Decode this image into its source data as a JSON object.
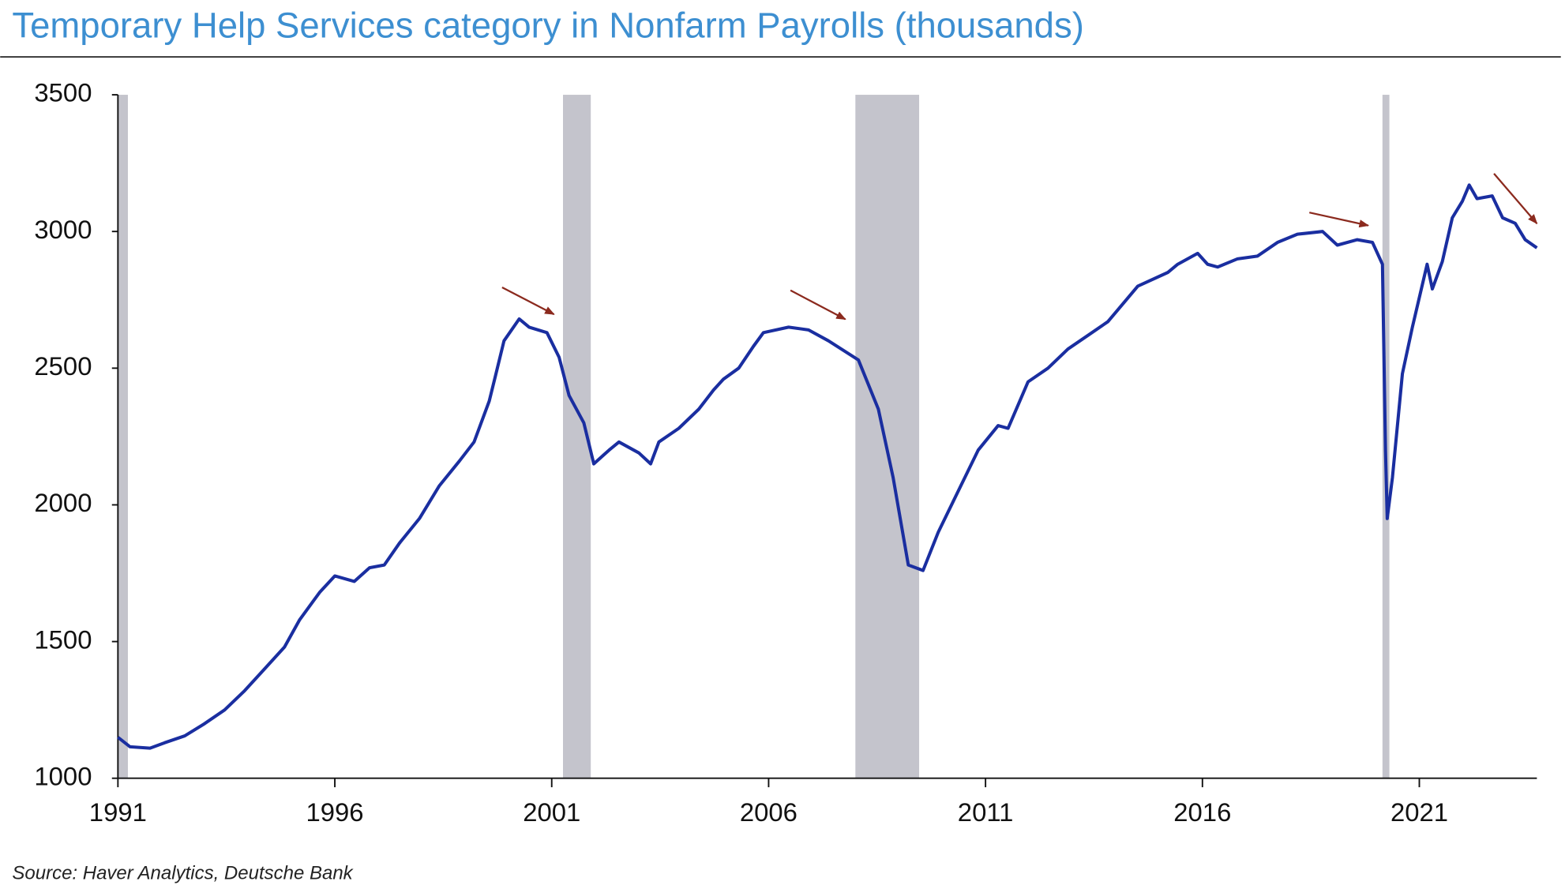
{
  "chart_data": {
    "type": "line",
    "title": "Temporary Help Services category in Nonfarm Payrolls (thousands)",
    "source": "Source: Haver Analytics, Deutsche Bank",
    "color": "#1a2ea0",
    "recession_color": "#c4c4cc",
    "x": [
      1991.0,
      1991.28,
      1991.74,
      1992.08,
      1992.54,
      1993.0,
      1993.46,
      1993.92,
      1994.38,
      1994.84,
      1995.19,
      1995.65,
      1996.0,
      1996.45,
      1996.8,
      1997.14,
      1997.49,
      1997.95,
      1998.41,
      1998.87,
      1999.21,
      1999.56,
      1999.7,
      1999.9,
      2000.25,
      2000.48,
      2000.89,
      2001.17,
      2001.4,
      2001.74,
      2001.97,
      2002.32,
      2002.55,
      2003.01,
      2003.28,
      2003.47,
      2003.93,
      2004.39,
      2004.73,
      2004.96,
      2005.31,
      2005.65,
      2005.88,
      2006.46,
      2006.92,
      2007.38,
      2008.07,
      2008.53,
      2008.87,
      2009.22,
      2009.56,
      2009.91,
      2010.37,
      2010.83,
      2011.29,
      2011.52,
      2011.98,
      2012.44,
      2012.9,
      2013.36,
      2013.82,
      2014.51,
      2015.2,
      2015.43,
      2015.89,
      2016.12,
      2016.35,
      2016.81,
      2017.27,
      2017.73,
      2018.19,
      2018.77,
      2019.11,
      2019.57,
      2019.92,
      2020.15,
      2020.22,
      2020.26,
      2020.38,
      2020.61,
      2020.84,
      2021.18,
      2021.3,
      2021.53,
      2021.76,
      2021.99,
      2022.15,
      2022.33,
      2022.68,
      2022.92,
      2023.21,
      2023.44,
      2023.71
    ],
    "values": [
      1150,
      1115,
      1110,
      1130,
      1155,
      1200,
      1250,
      1320,
      1400,
      1480,
      1580,
      1680,
      1740,
      1720,
      1770,
      1780,
      1860,
      1950,
      2070,
      2160,
      2230,
      2380,
      2470,
      2600,
      2680,
      2650,
      2630,
      2540,
      2400,
      2300,
      2150,
      2200,
      2230,
      2190,
      2150,
      2230,
      2280,
      2350,
      2420,
      2460,
      2500,
      2580,
      2630,
      2650,
      2640,
      2600,
      2530,
      2350,
      2100,
      1780,
      1760,
      1900,
      2050,
      2200,
      2290,
      2280,
      2450,
      2500,
      2570,
      2620,
      2670,
      2800,
      2850,
      2880,
      2920,
      2880,
      2870,
      2900,
      2910,
      2960,
      2990,
      3000,
      2950,
      2970,
      2960,
      2880,
      2200,
      1950,
      2100,
      2480,
      2650,
      2880,
      2790,
      2890,
      3050,
      3110,
      3170,
      3120,
      3130,
      3050,
      3030,
      2970,
      2940
    ],
    "recessions": [
      [
        1991.0,
        1991.23
      ],
      [
        2001.26,
        2001.9
      ],
      [
        2008.0,
        2009.47
      ],
      [
        2020.15,
        2020.31
      ]
    ],
    "xlim": [
      1991,
      2023.71
    ],
    "xticks": [
      1991,
      1996,
      2001,
      2006,
      2011,
      2016,
      2021
    ],
    "ylim": [
      1000,
      3500
    ],
    "yticks": [
      1000,
      1500,
      2000,
      2500,
      3000,
      3500
    ]
  }
}
